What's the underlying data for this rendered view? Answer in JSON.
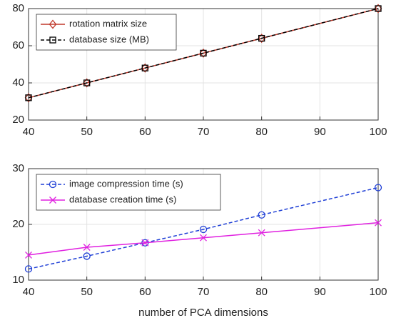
{
  "chart_data": [
    {
      "type": "line",
      "x": [
        40,
        50,
        60,
        70,
        80,
        100
      ],
      "series": [
        {
          "name": "rotation matrix size",
          "color": "#c0392b",
          "dashed": false,
          "marker": "diamond",
          "values": [
            32,
            40,
            48,
            56,
            64,
            80
          ]
        },
        {
          "name": "database size (MB)",
          "color": "#000000",
          "dashed": true,
          "marker": "square",
          "values": [
            32,
            40,
            48,
            56,
            64,
            80
          ]
        }
      ],
      "xlim": [
        40,
        100
      ],
      "xticks": [
        40,
        50,
        60,
        70,
        80,
        90,
        100
      ],
      "ylim": [
        20,
        80
      ],
      "yticks": [
        20,
        40,
        60,
        80
      ],
      "grid": true,
      "legend": "upper left"
    },
    {
      "type": "line",
      "x_label": "number of PCA dimensions",
      "x": [
        40,
        50,
        60,
        70,
        80,
        100
      ],
      "series": [
        {
          "name": "image compression time (s)",
          "color": "#1f3fd6",
          "dashed": true,
          "marker": "circle",
          "values": [
            12,
            14.3,
            16.7,
            19.1,
            21.7,
            26.6
          ]
        },
        {
          "name": "database creation time (s)",
          "color": "#e020e0",
          "dashed": false,
          "marker": "x",
          "values": [
            14.5,
            15.9,
            16.7,
            17.6,
            18.5,
            20.3
          ]
        }
      ],
      "xlim": [
        40,
        100
      ],
      "xticks": [
        40,
        50,
        60,
        70,
        80,
        90,
        100
      ],
      "ylim": [
        10,
        30
      ],
      "yticks": [
        10,
        20,
        30
      ],
      "grid": true,
      "legend": "upper left"
    }
  ]
}
